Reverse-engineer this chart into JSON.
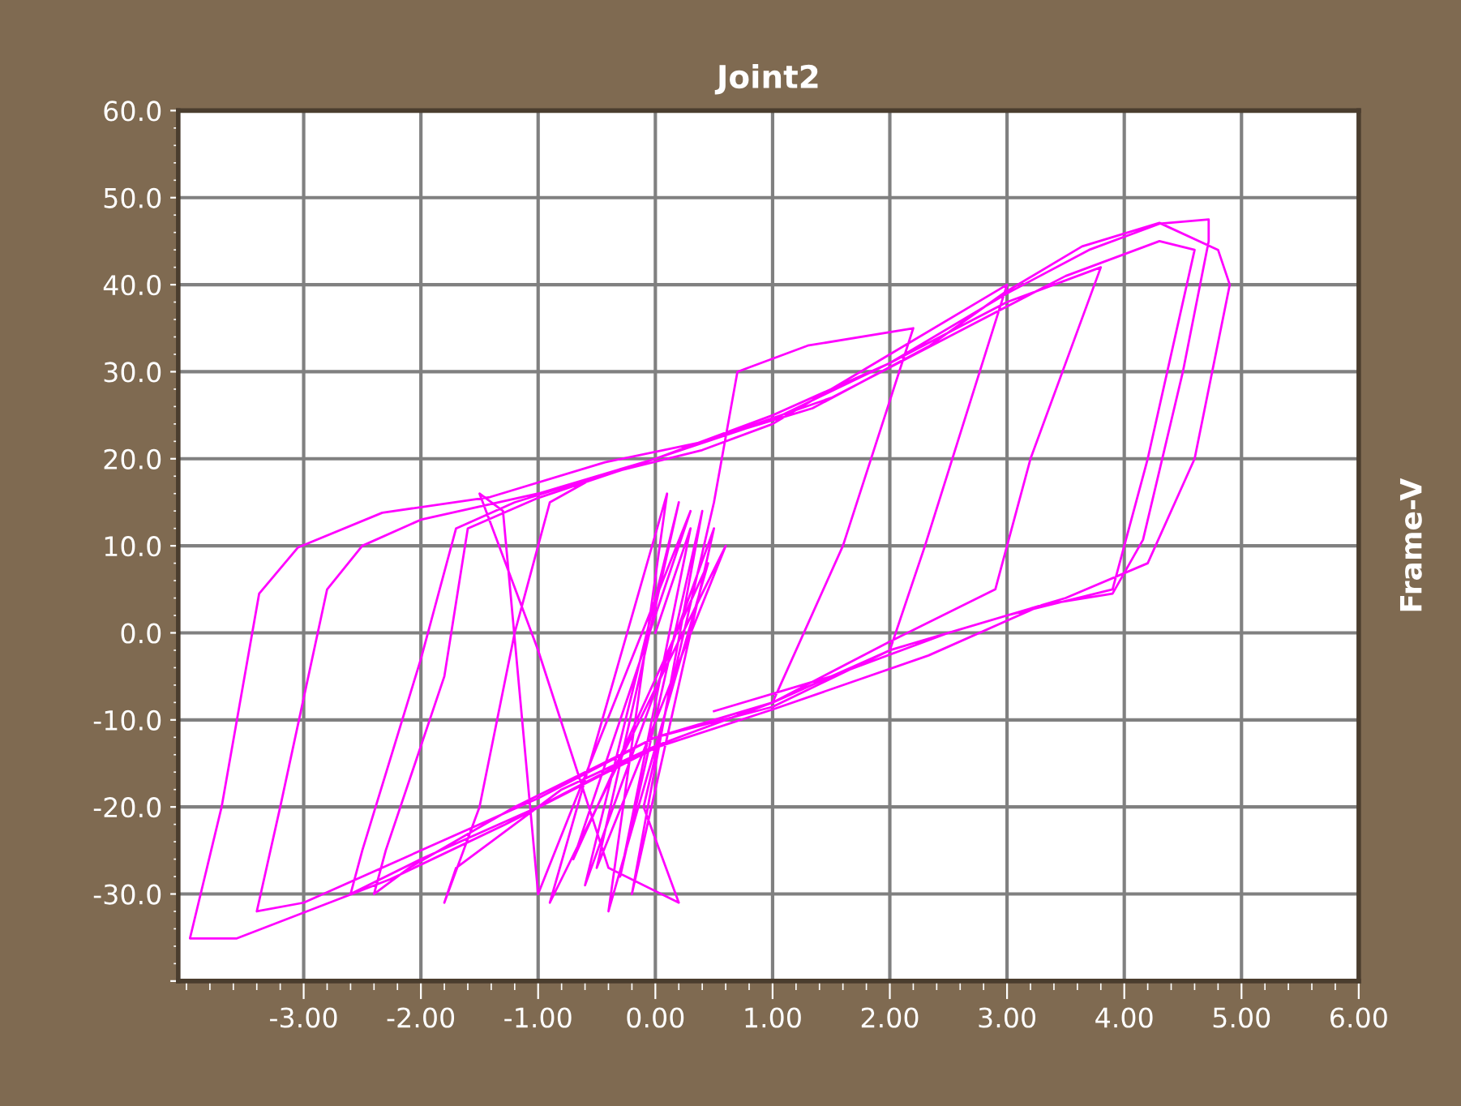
{
  "chart_data": {
    "type": "line",
    "title": "Joint2",
    "ylabel": "Frame-V",
    "xlim": [
      -4.07,
      6.0
    ],
    "ylim": [
      -40,
      60
    ],
    "xticks": [
      {
        "value": -3,
        "label": "-3.00"
      },
      {
        "value": -2,
        "label": "-2.00"
      },
      {
        "value": -1,
        "label": "-1.00"
      },
      {
        "value": 0,
        "label": "0.00"
      },
      {
        "value": 1,
        "label": "1.00"
      },
      {
        "value": 2,
        "label": "2.00"
      },
      {
        "value": 3,
        "label": "3.00"
      },
      {
        "value": 4,
        "label": "4.00"
      },
      {
        "value": 5,
        "label": "5.00"
      },
      {
        "value": 6,
        "label": "6.00"
      }
    ],
    "yticks": [
      {
        "value": -40,
        "label": null
      },
      {
        "value": -30,
        "label": "-30.0"
      },
      {
        "value": -20,
        "label": "-20.0"
      },
      {
        "value": -10,
        "label": "-10.0"
      },
      {
        "value": 0,
        "label": "0.0"
      },
      {
        "value": 10,
        "label": "10.0"
      },
      {
        "value": 20,
        "label": "20.0"
      },
      {
        "value": 30,
        "label": "30.0"
      },
      {
        "value": 40,
        "label": "40.0"
      },
      {
        "value": 50,
        "label": "50.0"
      },
      {
        "value": 60,
        "label": "60.0"
      }
    ],
    "grid": true,
    "marker": "none",
    "line_style": "solid",
    "series": [
      {
        "color": "#ff00ff",
        "x": [
          0,
          0.3,
          -0.3,
          0.4,
          -0.2,
          0.5,
          -0.6,
          0.2,
          -0.5,
          0.6,
          -0.9,
          0.1,
          -0.4,
          0.45,
          -0.7,
          0.3,
          -1.0,
          -1.3,
          -1.5,
          -1.0,
          -0.4,
          0.2,
          -0.1,
          0.5,
          0.7,
          1.3,
          2.2,
          1.6,
          1.0,
          0,
          -0.8,
          -1.7,
          -1.8,
          -1.5,
          -1.2,
          -0.9,
          -0.5,
          0.4,
          1.0,
          2.0,
          3.0,
          2.3,
          2.0,
          1.0,
          0,
          -1.2,
          -2.1,
          -2.4,
          -2.3,
          -1.8,
          -1.6,
          -1.0,
          0.0,
          1.0,
          2.0,
          3.0,
          3.8,
          3.2,
          2.9,
          2.0,
          1.0,
          0,
          -1.0,
          -2.0,
          -2.6,
          -2.5,
          -2.0,
          -1.7,
          -1.2,
          0.0,
          1.5,
          2.5,
          3.5,
          4.3,
          4.6,
          4.2,
          3.9,
          3.0,
          2.0,
          1.0,
          0,
          -1.0,
          -2.0,
          -3.0,
          -3.4,
          -3.2,
          -2.8,
          -2.5,
          -2.0,
          -1.0,
          0.0,
          1.0,
          2.0,
          3.0,
          3.7,
          4.3,
          4.72,
          4.72,
          4.5,
          4.16,
          3.9,
          3.3,
          2.33,
          1.0,
          0,
          -1.28,
          -2.26,
          -3.57,
          -3.97,
          -3.7,
          -3.38,
          -3.05,
          -2.33,
          -1.41,
          -0.43,
          0.36,
          1.34,
          2.33,
          2.98,
          3.64,
          4.3,
          4.8,
          4.9,
          4.6,
          4.2,
          3.5,
          2.5,
          1.5,
          0.5
        ],
        "values": [
          0,
          12,
          -28,
          14,
          -30,
          12,
          -29,
          15,
          -27,
          10,
          -31,
          16,
          -32,
          8,
          -26,
          14,
          -30,
          14,
          16,
          -2,
          -27,
          -31,
          -20,
          15,
          30,
          33,
          35,
          10,
          -8,
          -13,
          -18,
          -27,
          -31,
          -20,
          0,
          15,
          18,
          21,
          24,
          32,
          40,
          10,
          -2,
          -8.5,
          -12,
          -20,
          -27,
          -30,
          -25,
          -5,
          12,
          15.5,
          20,
          25,
          31,
          38,
          42,
          20,
          5,
          -1,
          -8,
          -13,
          -20,
          -26,
          -30,
          -25,
          -3,
          12,
          15,
          20,
          27,
          34,
          41,
          45,
          44,
          20,
          5,
          2,
          -2,
          -8,
          -12,
          -19,
          -25,
          -31,
          -32,
          -20,
          5,
          10,
          13,
          16,
          20,
          24.5,
          31,
          39,
          44,
          47,
          47.5,
          45,
          30,
          10.7,
          4.5,
          3.2,
          -2.6,
          -8.8,
          -13.2,
          -22,
          -28.3,
          -35.1,
          -35.1,
          -20,
          4.5,
          9.8,
          13.8,
          15.6,
          19.6,
          21.8,
          25.8,
          32.9,
          39.1,
          44.4,
          47.1,
          44,
          40,
          20,
          8,
          4,
          0,
          -5,
          -9
        ]
      }
    ]
  }
}
